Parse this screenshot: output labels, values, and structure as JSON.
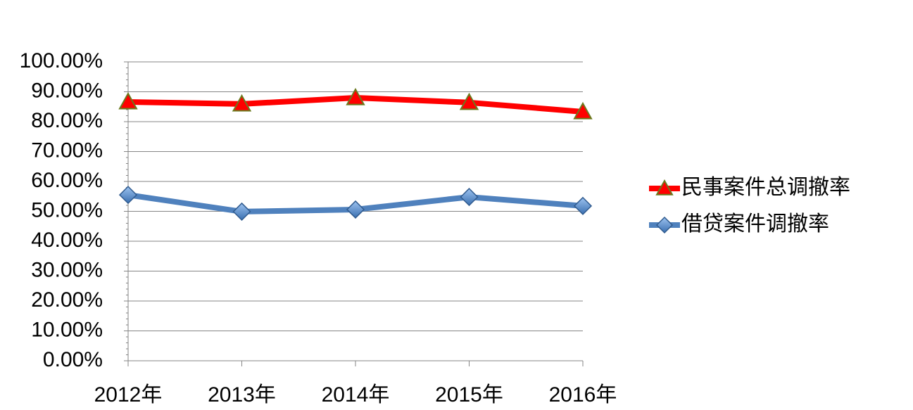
{
  "chart_data": {
    "type": "line",
    "categories": [
      "2012年",
      "2013年",
      "2014年",
      "2015年",
      "2016年"
    ],
    "series": [
      {
        "name": "民事案件总调撤率",
        "color": "#ff0000",
        "marker": "triangle",
        "values": [
          86.6,
          85.9,
          88.0,
          86.4,
          83.3
        ]
      },
      {
        "name": "借贷案件调撤率",
        "color": "#4f81bd",
        "marker": "diamond",
        "values": [
          55.5,
          49.9,
          50.6,
          54.8,
          51.8
        ]
      }
    ],
    "ylim": [
      0,
      100
    ],
    "yticks": [
      {
        "value": 0,
        "label": "0.00%"
      },
      {
        "value": 10,
        "label": "10.00%"
      },
      {
        "value": 20,
        "label": "20.00%"
      },
      {
        "value": 30,
        "label": "30.00%"
      },
      {
        "value": 40,
        "label": "40.00%"
      },
      {
        "value": 50,
        "label": "50.00%"
      },
      {
        "value": 60,
        "label": "60.00%"
      },
      {
        "value": 70,
        "label": "70.00%"
      },
      {
        "value": 80,
        "label": "80.00%"
      },
      {
        "value": 90,
        "label": "90.00%"
      },
      {
        "value": 100,
        "label": "100.00%"
      }
    ],
    "grid": true,
    "legend": "right"
  }
}
